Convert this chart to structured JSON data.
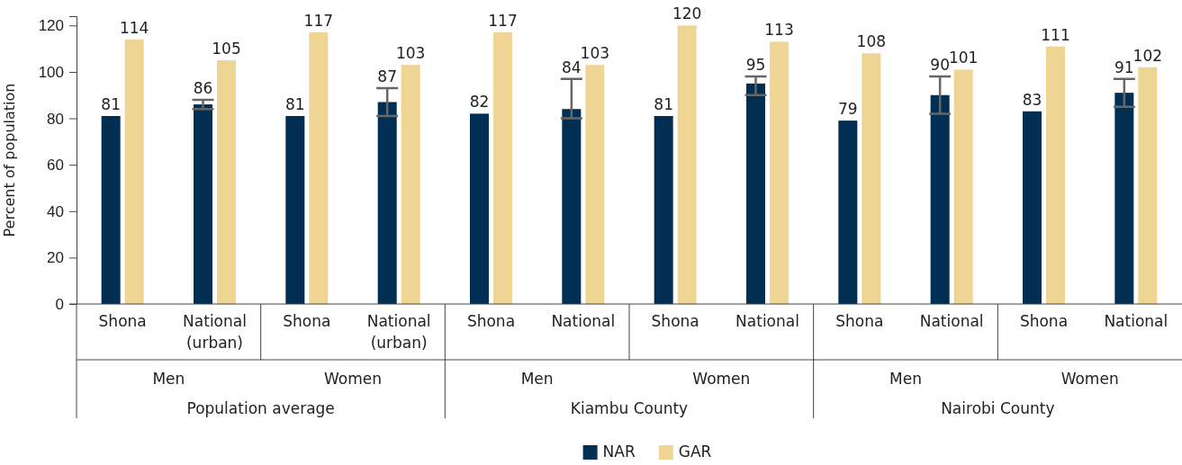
{
  "chart_data": {
    "type": "bar",
    "ylabel": "Percent of population",
    "categories": [
      "Shona",
      "National (urban)",
      "Shona",
      "National (urban)",
      "Shona",
      "National",
      "Shona",
      "National",
      "Shona",
      "National",
      "Shona",
      "National"
    ],
    "series": [
      {
        "name": "NAR",
        "color": "#002f53",
        "values": [
          81,
          86,
          81,
          87,
          82,
          84,
          81,
          95,
          79,
          90,
          83,
          91
        ],
        "errors": [
          null,
          [
            84,
            88
          ],
          null,
          [
            81,
            93
          ],
          null,
          [
            80,
            97
          ],
          null,
          [
            90,
            98
          ],
          null,
          [
            82,
            98
          ],
          null,
          [
            85,
            97
          ]
        ]
      },
      {
        "name": "GAR",
        "color": "#efd594",
        "values": [
          114,
          105,
          117,
          103,
          117,
          103,
          120,
          113,
          108,
          101,
          111,
          102
        ]
      }
    ],
    "ylim": [
      0,
      124
    ],
    "yticks": [
      0,
      20,
      40,
      60,
      80,
      100,
      120
    ],
    "data_labels": true,
    "legend": "bottom",
    "grid": false,
    "annotations": [
      "Men",
      "Women",
      "Men",
      "Women",
      "Men",
      "Women",
      "Population average",
      "Kiambu County",
      "Nairobi County"
    ]
  }
}
